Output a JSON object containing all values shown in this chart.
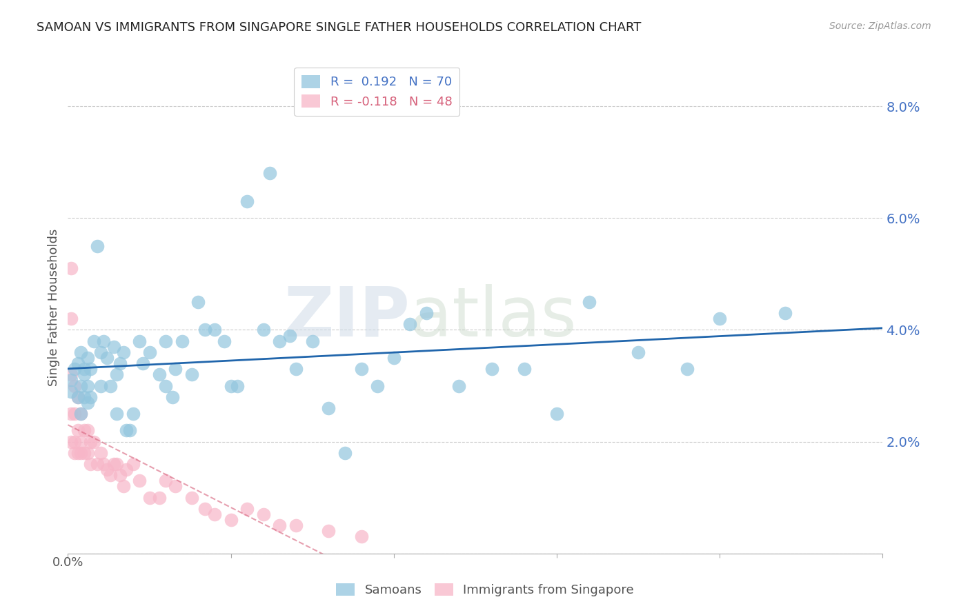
{
  "title": "SAMOAN VS IMMIGRANTS FROM SINGAPORE SINGLE FATHER HOUSEHOLDS CORRELATION CHART",
  "source": "Source: ZipAtlas.com",
  "ylabel": "Single Father Households",
  "yticks": [
    0.0,
    0.02,
    0.04,
    0.06,
    0.08
  ],
  "ytick_labels": [
    "",
    "2.0%",
    "4.0%",
    "6.0%",
    "8.0%"
  ],
  "xlim": [
    0.0,
    0.25
  ],
  "ylim": [
    0.0,
    0.088
  ],
  "legend1_R": "0.192",
  "legend1_N": "70",
  "legend2_R": "-0.118",
  "legend2_N": "48",
  "blue_color": "#92c5de",
  "pink_color": "#f7b6c8",
  "line_blue": "#2166ac",
  "line_pink": "#d6607a",
  "watermark": "ZIPatlas",
  "samoans_x": [
    0.001,
    0.001,
    0.002,
    0.003,
    0.003,
    0.004,
    0.004,
    0.004,
    0.005,
    0.005,
    0.005,
    0.006,
    0.006,
    0.006,
    0.007,
    0.007,
    0.008,
    0.009,
    0.01,
    0.01,
    0.011,
    0.012,
    0.013,
    0.014,
    0.015,
    0.015,
    0.016,
    0.017,
    0.018,
    0.019,
    0.02,
    0.022,
    0.023,
    0.025,
    0.028,
    0.03,
    0.03,
    0.032,
    0.033,
    0.035,
    0.038,
    0.04,
    0.042,
    0.045,
    0.048,
    0.05,
    0.052,
    0.055,
    0.06,
    0.062,
    0.065,
    0.068,
    0.07,
    0.075,
    0.08,
    0.085,
    0.09,
    0.095,
    0.1,
    0.105,
    0.11,
    0.12,
    0.13,
    0.14,
    0.15,
    0.16,
    0.175,
    0.19,
    0.2,
    0.22
  ],
  "samoans_y": [
    0.031,
    0.029,
    0.033,
    0.034,
    0.028,
    0.036,
    0.03,
    0.025,
    0.033,
    0.028,
    0.032,
    0.035,
    0.03,
    0.027,
    0.033,
    0.028,
    0.038,
    0.055,
    0.036,
    0.03,
    0.038,
    0.035,
    0.03,
    0.037,
    0.032,
    0.025,
    0.034,
    0.036,
    0.022,
    0.022,
    0.025,
    0.038,
    0.034,
    0.036,
    0.032,
    0.038,
    0.03,
    0.028,
    0.033,
    0.038,
    0.032,
    0.045,
    0.04,
    0.04,
    0.038,
    0.03,
    0.03,
    0.063,
    0.04,
    0.068,
    0.038,
    0.039,
    0.033,
    0.038,
    0.026,
    0.018,
    0.033,
    0.03,
    0.035,
    0.041,
    0.043,
    0.03,
    0.033,
    0.033,
    0.025,
    0.045,
    0.036,
    0.033,
    0.042,
    0.043
  ],
  "singapore_x": [
    0.001,
    0.001,
    0.001,
    0.001,
    0.001,
    0.002,
    0.002,
    0.002,
    0.002,
    0.003,
    0.003,
    0.003,
    0.004,
    0.004,
    0.004,
    0.005,
    0.005,
    0.006,
    0.006,
    0.007,
    0.007,
    0.008,
    0.009,
    0.01,
    0.011,
    0.012,
    0.013,
    0.014,
    0.015,
    0.016,
    0.017,
    0.018,
    0.02,
    0.022,
    0.025,
    0.028,
    0.03,
    0.033,
    0.038,
    0.042,
    0.045,
    0.05,
    0.055,
    0.06,
    0.065,
    0.07,
    0.08,
    0.09
  ],
  "singapore_y": [
    0.051,
    0.042,
    0.032,
    0.025,
    0.02,
    0.03,
    0.025,
    0.02,
    0.018,
    0.028,
    0.022,
    0.018,
    0.025,
    0.02,
    0.018,
    0.022,
    0.018,
    0.022,
    0.018,
    0.02,
    0.016,
    0.02,
    0.016,
    0.018,
    0.016,
    0.015,
    0.014,
    0.016,
    0.016,
    0.014,
    0.012,
    0.015,
    0.016,
    0.013,
    0.01,
    0.01,
    0.013,
    0.012,
    0.01,
    0.008,
    0.007,
    0.006,
    0.008,
    0.007,
    0.005,
    0.005,
    0.004,
    0.003
  ]
}
